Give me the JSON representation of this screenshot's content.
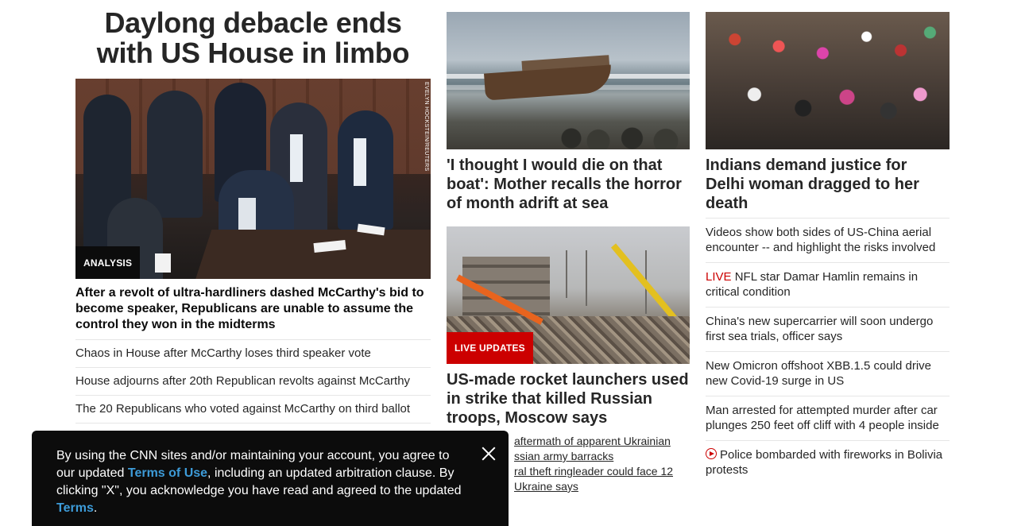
{
  "main_story": {
    "headline": "Daylong debacle ends with US House in limbo",
    "photo_credit": "EVELYN HOCKSTEIN/REUTERS",
    "tag": "ANALYSIS",
    "lede": "After a revolt of ultra-hardliners dashed McCarthy's bid to become speaker, Republicans are unable to assume the control they won in the midterms",
    "links": [
      "Chaos in House after McCarthy loses third speaker vote",
      "House adjourns after 20th Republican revolts against McCarthy",
      "The 20 Republicans who voted against McCarthy on third ballot"
    ]
  },
  "middle_column": {
    "story1": {
      "headline": "'I thought I would die on that boat': Mother recalls the horror of month adrift at sea"
    },
    "story2": {
      "tag": "LIVE UPDATES",
      "headline": "US-made rocket launchers used in strike that killed Russian troops, Moscow says",
      "links": [
        "aftermath of apparent Ukrainian",
        "ssian army barracks",
        "ral theft ringleader could face 12",
        "Ukraine says"
      ]
    }
  },
  "right_column": {
    "story": {
      "headline": "Indians demand justice for Delhi woman dragged to her death"
    },
    "links": [
      {
        "prefix": "",
        "text": "Videos show both sides of US-China aerial encounter -- and highlight the risks involved"
      },
      {
        "prefix": "LIVE",
        "text": "NFL star Damar Hamlin remains in critical condition"
      },
      {
        "prefix": "",
        "text": "China's new supercarrier will soon undergo first sea trials, officer says"
      },
      {
        "prefix": "",
        "text": "New Omicron offshoot XBB.1.5 could drive new Covid-19 surge in US"
      },
      {
        "prefix": "",
        "text": "Man arrested for attempted murder after car plunges 250 feet off cliff with 4 people inside"
      },
      {
        "prefix": "",
        "text": "Police bombarded with fireworks in Bolivia protests",
        "icon": "play-icon"
      }
    ]
  },
  "consent_banner": {
    "text_part1": "By using the CNN sites and/or maintaining your account, you agree to our updated ",
    "link1": "Terms of Use",
    "text_part2": ", including an updated arbitration clause. By clicking \"X\", you acknowledge you have read and agreed to the updated ",
    "link2": "Terms",
    "text_part3": "."
  },
  "colors": {
    "live_red": "#cc0000",
    "link_blue": "#3d9bd8",
    "banner_bg": "#0c0c0c"
  }
}
